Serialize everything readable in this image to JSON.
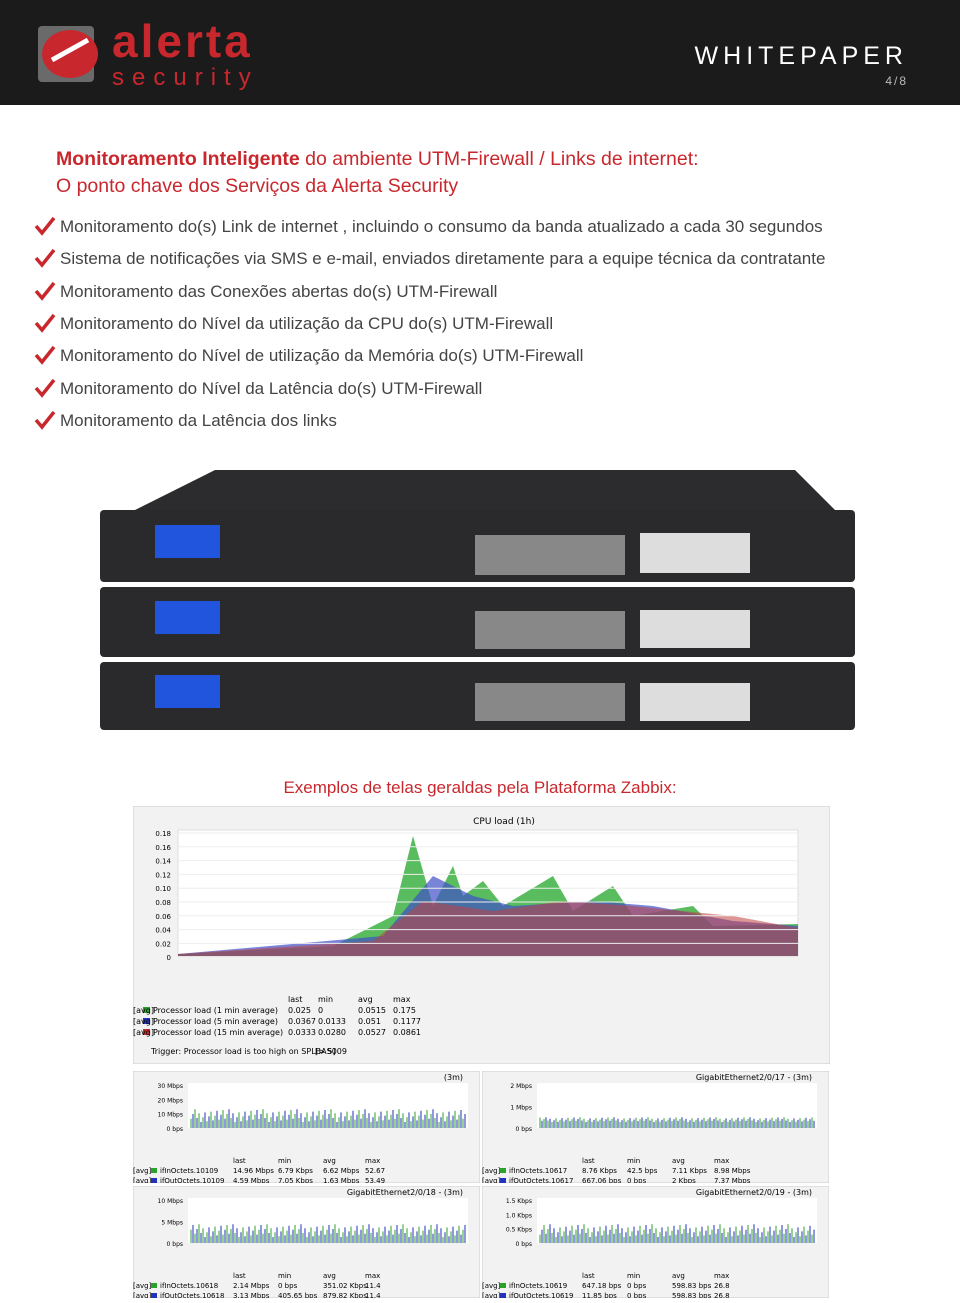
{
  "header": {
    "brand": "alerta",
    "sub": "security",
    "label": "WHITEPAPER",
    "page": "4/8"
  },
  "heading": {
    "highlight": "Monitoramento Inteligente",
    "rest": "do ambiente UTM-Firewall / Links de internet:",
    "line2": "O ponto chave dos Serviços da Alerta Security"
  },
  "bullets": [
    "Monitoramento  do(s) Link de internet , incluindo o consumo da banda atualizado a cada 30 segundos",
    "Sistema de notificações via SMS e e-mail, enviados diretamente para a equipe técnica da contratante",
    "Monitoramento das Conexões abertas do(s) UTM-Firewall",
    "Monitoramento do Nível da utilização da CPU do(s) UTM-Firewall",
    "Monitoramento do Nível de utilização da Memória do(s) UTM-Firewall",
    "Monitoramento do Nível da Latência do(s) UTM-Firewall",
    "Monitoramento da Latência dos links"
  ],
  "caption": "Exemplos de telas geraldas pela Plataforma Zabbix:",
  "cpu_chart": {
    "title": "CPU load (1h)",
    "yticks": [
      "0.18",
      "0.16",
      "0.14",
      "0.12",
      "0.10",
      "0.08",
      "0.06",
      "0.04",
      "0.02",
      "0"
    ],
    "legend_header": [
      "last",
      "min",
      "avg",
      "max"
    ],
    "rows": [
      [
        "Processor load (1 min average)",
        "[avg]",
        "0.025",
        "0",
        "0.0515",
        "0.175"
      ],
      [
        "Processor load (5 min average)",
        "[avg]",
        "0.0367",
        "0.0133",
        "0.051",
        "0.1177"
      ],
      [
        "Processor load (15 min average)",
        "[avg]",
        "0.0333",
        "0.0280",
        "0.0527",
        "0.0861"
      ]
    ],
    "trigger": "Trigger: Processor load is too high on SPLBAS009",
    "trigger_value": "[> 5]"
  },
  "small_charts": [
    {
      "title": "(3m)",
      "yticks": [
        "30 Mbps",
        "20 Mbps",
        "10 Mbps",
        "0 bps"
      ],
      "legend_header": [
        "last",
        "min",
        "avg",
        "max"
      ],
      "rows": [
        [
          "ifInOctets.10109",
          "[avg]",
          "14.96 Mbps",
          "6.79 Kbps",
          "6.62 Mbps",
          "52.67"
        ],
        [
          "ifOutOctets.10109",
          "[avg]",
          "4.59 Mbps",
          "7.05 Kbps",
          "1.63 Mbps",
          "53.49"
        ]
      ]
    },
    {
      "title": "GigabitEthernet2/0/17 -            (3m)",
      "yticks": [
        "2 Mbps",
        "1 Mbps",
        "0 bps"
      ],
      "legend_header": [
        "last",
        "min",
        "avg",
        "max"
      ],
      "rows": [
        [
          "ifInOctets.10617",
          "[avg]",
          "8.76 Kbps",
          "42.5 bps",
          "7.11 Kbps",
          "8.98 Mbps"
        ],
        [
          "ifOutOctets.10617",
          "[avg]",
          "667.06 bps",
          "0 bps",
          "2 Kbps",
          "7.37 Mbps"
        ]
      ]
    },
    {
      "title": "GigabitEthernet2/0/18 -            (3m)",
      "yticks": [
        "10 Mbps",
        "5 Mbps",
        "0 bps"
      ],
      "legend_header": [
        "last",
        "min",
        "avg",
        "max"
      ],
      "rows": [
        [
          "ifInOctets.10618",
          "[avg]",
          "2.14 Mbps",
          "0 bps",
          "351.02 Kbps",
          "11.4"
        ],
        [
          "ifOutOctets.10618",
          "[avg]",
          "3.13 Mbps",
          "405.65 bps",
          "879.82 Kbps",
          "11.4"
        ]
      ]
    },
    {
      "title": "GigabitEthernet2/0/19 -            (3m)",
      "yticks": [
        "1.5 Kbps",
        "1.0 Kbps",
        "0.5 Kbps",
        "0 bps"
      ],
      "legend_header": [
        "last",
        "min",
        "avg",
        "max"
      ],
      "rows": [
        [
          "ifInOctets.10619",
          "[avg]",
          "647.18 bps",
          "0 bps",
          "598.83 bps",
          "26.8"
        ],
        [
          "ifOutOctets.10619",
          "[avg]",
          "11.85 bps",
          "0 bps",
          "598.83 bps",
          "26.8"
        ]
      ]
    }
  ]
}
